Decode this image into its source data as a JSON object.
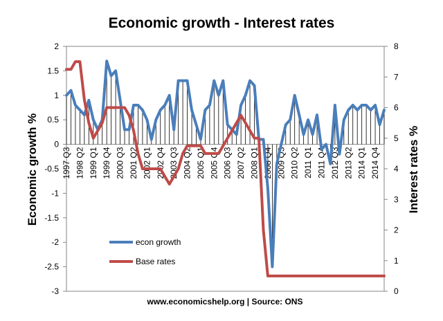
{
  "chart_data": {
    "type": "line",
    "title": "Economic growth - Interest rates",
    "ylabel": "Economic growth %",
    "y2label": "Interest rates %",
    "source": "www.economicshelp.org | Source: ONS",
    "ylim": [
      -3,
      2
    ],
    "y2lim": [
      0,
      8
    ],
    "yticks": [
      "2",
      "1.5",
      "1",
      "0.5",
      "0",
      "-0.5",
      "-1",
      "-1.5",
      "-2",
      "-2.5",
      "-3"
    ],
    "y2ticks": [
      "8",
      "7",
      "6",
      "5",
      "4",
      "3",
      "2",
      "1",
      "0"
    ],
    "xticklabels": [
      "1997 Q3",
      "1998 Q2",
      "1999 Q1",
      "1999 Q4",
      "2000 Q3",
      "2001 Q2",
      "2002 Q1",
      "2002 Q4",
      "2003 Q3",
      "2004 Q2",
      "2005 Q1",
      "2005 Q4",
      "2006 Q3",
      "2007 Q2",
      "2008 Q1",
      "2008 Q4",
      "2009 Q3",
      "2010 Q2",
      "2011 Q1",
      "2011 Q4",
      "2012 Q3",
      "2013 Q2",
      "2014 Q1",
      "2014 Q4"
    ],
    "x_start": "1997 Q3",
    "legend": "left-middle",
    "grid": false,
    "series": [
      {
        "name": "econ growth",
        "axis": "left",
        "color": "#4a7ebb",
        "values": [
          1.0,
          1.1,
          0.8,
          0.7,
          0.6,
          0.9,
          0.5,
          0.3,
          0.5,
          1.7,
          1.4,
          1.5,
          0.9,
          0.3,
          0.3,
          0.8,
          0.8,
          0.7,
          0.5,
          0.1,
          0.5,
          0.7,
          0.8,
          1.0,
          0.3,
          1.3,
          1.3,
          1.3,
          0.7,
          0.4,
          0.1,
          0.7,
          0.8,
          1.3,
          1.0,
          1.3,
          0.4,
          0.3,
          0.2,
          0.8,
          1.0,
          1.3,
          1.2,
          0.1,
          0.1,
          -0.9,
          -2.5,
          -0.4,
          0.0,
          0.4,
          0.5,
          1.0,
          0.6,
          0.2,
          0.5,
          0.2,
          0.6,
          -0.1,
          0.0,
          -0.4,
          0.8,
          -0.2,
          0.5,
          0.7,
          0.8,
          0.7,
          0.8,
          0.8,
          0.7,
          0.8,
          0.4,
          0.7
        ]
      },
      {
        "name": "Base rates",
        "axis": "right",
        "color": "#be4b48",
        "values": [
          7.25,
          7.25,
          7.5,
          7.5,
          6.25,
          5.5,
          5.0,
          5.25,
          5.5,
          6.0,
          6.0,
          6.0,
          6.0,
          6.0,
          5.75,
          5.25,
          4.5,
          4.0,
          4.0,
          4.0,
          4.0,
          4.0,
          3.75,
          3.5,
          3.75,
          4.0,
          4.5,
          4.75,
          4.75,
          4.75,
          4.75,
          4.5,
          4.5,
          4.5,
          4.5,
          4.75,
          5.0,
          5.25,
          5.5,
          5.75,
          5.5,
          5.25,
          5.0,
          5.0,
          2.0,
          0.5,
          0.5,
          0.5,
          0.5,
          0.5,
          0.5,
          0.5,
          0.5,
          0.5,
          0.5,
          0.5,
          0.5,
          0.5,
          0.5,
          0.5,
          0.5,
          0.5,
          0.5,
          0.5,
          0.5,
          0.5,
          0.5,
          0.5,
          0.5,
          0.5,
          0.5,
          0.5
        ]
      }
    ]
  }
}
